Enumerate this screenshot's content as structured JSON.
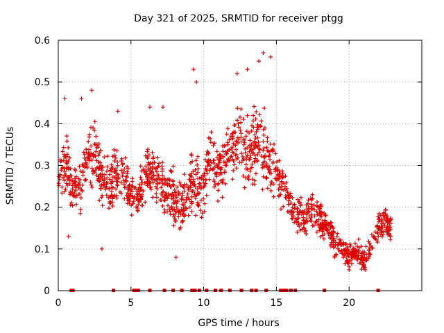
{
  "chart_data": {
    "type": "scatter",
    "title": "Day 321 of 2025, SRMTID for receiver ptgg",
    "xlabel": "GPS time / hours",
    "ylabel": "SRMTID / TECUs",
    "xlim": [
      0,
      25
    ],
    "ylim": [
      0,
      0.6
    ],
    "x_ticks": [
      0,
      5,
      10,
      15,
      20
    ],
    "x_tick_labels": [
      "0",
      "5",
      "10",
      "15",
      "20"
    ],
    "y_ticks": [
      0,
      0.1,
      0.2,
      0.3,
      0.4,
      0.5,
      0.6
    ],
    "y_tick_labels": [
      "0",
      "0.1",
      "0.2",
      "0.3",
      "0.4",
      "0.5",
      "0.6"
    ],
    "grid": true,
    "marker": "+",
    "color": "#e00000",
    "series": [
      {
        "name": "SRMTID",
        "profile_x": [
          0,
          0.5,
          1,
          1.5,
          2,
          2.5,
          3,
          3.5,
          4,
          4.5,
          5,
          5.5,
          6,
          6.5,
          7,
          7.5,
          8,
          8.5,
          9,
          9.5,
          10,
          10.5,
          11,
          11.5,
          12,
          12.5,
          13,
          13.5,
          14,
          14.5,
          15,
          15.5,
          16,
          16.5,
          17,
          17.5,
          18,
          18.5,
          19,
          19.5,
          20,
          20.5,
          21,
          21.5,
          22,
          22.5,
          22.9
        ],
        "profile_center": [
          0.28,
          0.3,
          0.25,
          0.24,
          0.3,
          0.33,
          0.27,
          0.25,
          0.27,
          0.28,
          0.23,
          0.22,
          0.28,
          0.28,
          0.26,
          0.23,
          0.22,
          0.2,
          0.26,
          0.24,
          0.26,
          0.33,
          0.28,
          0.3,
          0.35,
          0.37,
          0.32,
          0.35,
          0.36,
          0.3,
          0.28,
          0.25,
          0.2,
          0.18,
          0.17,
          0.2,
          0.18,
          0.15,
          0.12,
          0.1,
          0.08,
          0.1,
          0.07,
          0.11,
          0.15,
          0.17,
          0.14
        ],
        "profile_spread": [
          0.09,
          0.1,
          0.09,
          0.09,
          0.1,
          0.1,
          0.09,
          0.1,
          0.1,
          0.09,
          0.06,
          0.07,
          0.08,
          0.08,
          0.08,
          0.08,
          0.09,
          0.1,
          0.1,
          0.1,
          0.1,
          0.1,
          0.1,
          0.11,
          0.12,
          0.12,
          0.12,
          0.13,
          0.13,
          0.11,
          0.08,
          0.07,
          0.06,
          0.06,
          0.06,
          0.07,
          0.07,
          0.06,
          0.05,
          0.04,
          0.04,
          0.04,
          0.04,
          0.04,
          0.04,
          0.05,
          0.05
        ],
        "extremes": [
          [
            0.45,
            0.46
          ],
          [
            1.6,
            0.46
          ],
          [
            2.3,
            0.48
          ],
          [
            4.1,
            0.43
          ],
          [
            6.3,
            0.44
          ],
          [
            7.2,
            0.44
          ],
          [
            9.3,
            0.53
          ],
          [
            9.5,
            0.5
          ],
          [
            12.3,
            0.52
          ],
          [
            13.0,
            0.53
          ],
          [
            13.8,
            0.55
          ],
          [
            14.1,
            0.57
          ],
          [
            14.6,
            0.56
          ],
          [
            20.0,
            0.05
          ],
          [
            21.1,
            0.05
          ],
          [
            0.7,
            0.13
          ],
          [
            3.0,
            0.1
          ],
          [
            8.1,
            0.08
          ],
          [
            19.0,
            0.08
          ]
        ],
        "zero_x": [
          0.9,
          1.0,
          3.8,
          5.2,
          5.3,
          5.5,
          6.3,
          7.3,
          7.9,
          8.5,
          9.2,
          9.4,
          9.7,
          10.2,
          10.8,
          11.2,
          11.8,
          12.6,
          13.3,
          13.6,
          14.3,
          15.3,
          15.5,
          15.7,
          16.0,
          16.3,
          18.3,
          22.0
        ]
      }
    ]
  }
}
